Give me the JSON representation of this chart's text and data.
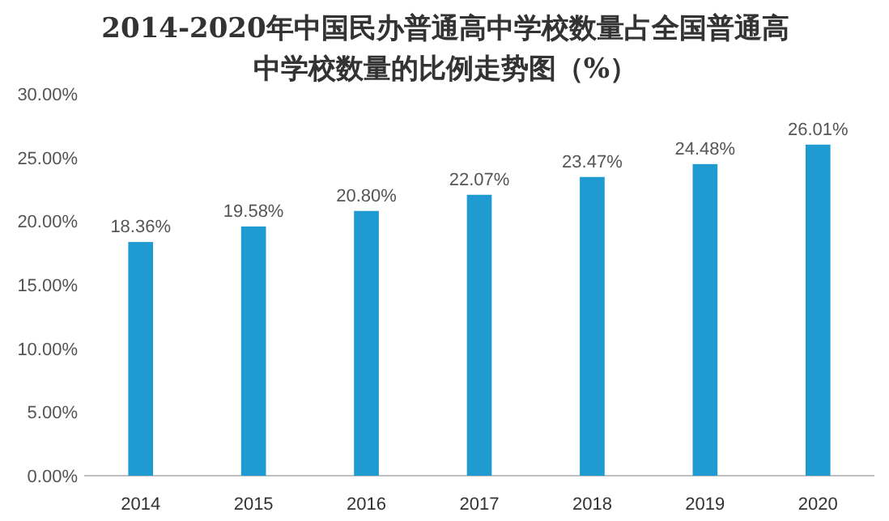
{
  "chart_data": {
    "type": "bar",
    "title": "2014-2020年中国民办普通高中学校数量占全国普通高中学校数量的比例走势图（%）",
    "categories": [
      "2014",
      "2015",
      "2016",
      "2017",
      "2018",
      "2019",
      "2020"
    ],
    "values": [
      18.36,
      19.58,
      20.8,
      22.07,
      23.47,
      24.48,
      26.01
    ],
    "value_labels": [
      "18.36%",
      "19.58%",
      "20.80%",
      "22.07%",
      "23.47%",
      "24.48%",
      "26.01%"
    ],
    "color": "#1f9bd1",
    "ylim": [
      0,
      30
    ],
    "yticks": [
      {
        "value": 0,
        "label": "0.00%"
      },
      {
        "value": 5,
        "label": "5.00%"
      },
      {
        "value": 10,
        "label": "10.00%"
      },
      {
        "value": 15,
        "label": "15.00%"
      },
      {
        "value": 20,
        "label": "20.00%"
      },
      {
        "value": 25,
        "label": "25.00%"
      },
      {
        "value": 30,
        "label": "30.00%"
      }
    ],
    "grid": false
  }
}
